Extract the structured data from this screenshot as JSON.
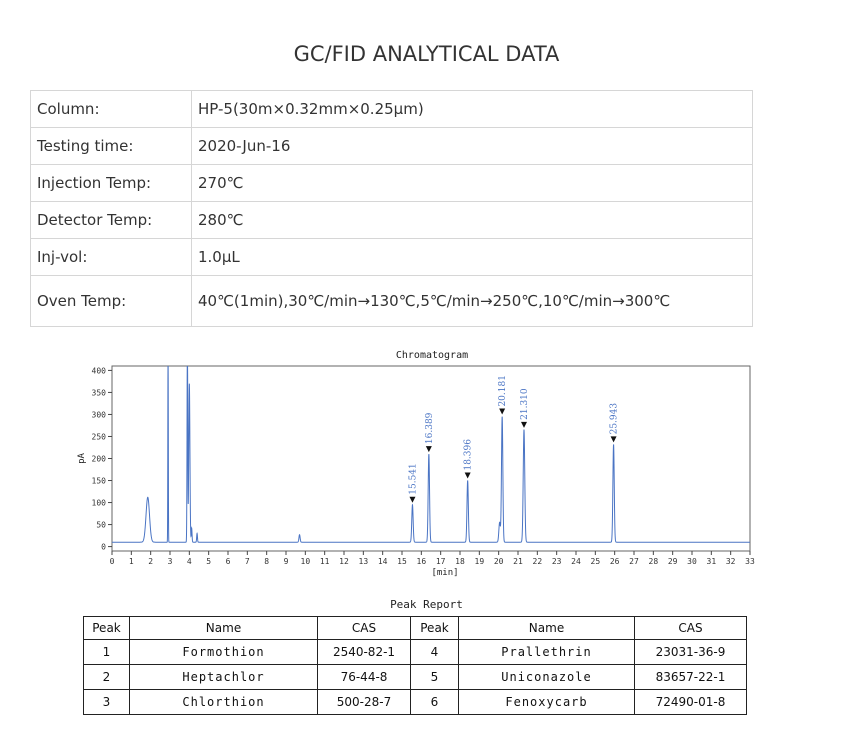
{
  "page": {
    "title": "GC/FID ANALYTICAL DATA"
  },
  "conditions": [
    {
      "key": "Column:",
      "value": "HP-5(30m×0.32mm×0.25μm)"
    },
    {
      "key": "Testing time:",
      "value": "2020-Jun-16"
    },
    {
      "key": "Injection Temp:",
      "value": "270℃"
    },
    {
      "key": "Detector Temp:",
      "value": "280℃"
    },
    {
      "key": "Inj-vol:",
      "value": "1.0μL"
    },
    {
      "key": "Oven Temp:",
      "value": "40℃(1min),30℃/min→130℃,5℃/min→250℃,10℃/min→300℃"
    }
  ],
  "chart_data": {
    "type": "line",
    "title": "Chromatogram",
    "xlabel": "[min]",
    "ylabel": "pA",
    "xlim": [
      0,
      33
    ],
    "ylim": [
      -10,
      410
    ],
    "xticks": [
      0,
      1,
      2,
      3,
      4,
      5,
      6,
      7,
      8,
      9,
      10,
      11,
      12,
      13,
      14,
      15,
      16,
      17,
      18,
      19,
      20,
      21,
      22,
      23,
      24,
      25,
      26,
      27,
      28,
      29,
      30,
      31,
      32,
      33
    ],
    "yticks": [
      0,
      50,
      100,
      150,
      200,
      250,
      300,
      350,
      400
    ],
    "baseline": 10,
    "line_color": "#4a74c4",
    "series": [
      {
        "peaks": [
          {
            "rt": 1.85,
            "height": 102,
            "width": 0.09
          },
          {
            "rt": 2.9,
            "height": 460,
            "width": 0.012
          },
          {
            "rt": 3.9,
            "height": 470,
            "width": 0.018
          },
          {
            "rt": 4.0,
            "height": 360,
            "width": 0.03
          },
          {
            "rt": 4.12,
            "height": 32,
            "width": 0.02
          },
          {
            "rt": 4.4,
            "height": 20,
            "width": 0.02
          },
          {
            "rt": 9.7,
            "height": 17,
            "width": 0.03
          },
          {
            "rt": 15.541,
            "height": 85,
            "width": 0.035
          },
          {
            "rt": 16.389,
            "height": 200,
            "width": 0.035
          },
          {
            "rt": 18.396,
            "height": 140,
            "width": 0.035
          },
          {
            "rt": 20.05,
            "height": 45,
            "width": 0.04
          },
          {
            "rt": 20.181,
            "height": 285,
            "width": 0.035
          },
          {
            "rt": 21.31,
            "height": 255,
            "width": 0.04
          },
          {
            "rt": 25.943,
            "height": 222,
            "width": 0.035
          }
        ]
      }
    ],
    "labeled_peaks": [
      {
        "rt": 15.541,
        "label": "15.541"
      },
      {
        "rt": 16.389,
        "label": "16.389"
      },
      {
        "rt": 18.396,
        "label": "18.396"
      },
      {
        "rt": 20.181,
        "label": "20.181"
      },
      {
        "rt": 21.31,
        "label": "21.310"
      },
      {
        "rt": 25.943,
        "label": "25.943"
      }
    ]
  },
  "peak_report": {
    "title": "Peak Report",
    "headers": [
      "Peak",
      "Name",
      "CAS",
      "Peak",
      "Name",
      "CAS"
    ],
    "rows": [
      [
        "1",
        "Formothion",
        "2540-82-1",
        "4",
        "Prallethrin",
        "23031-36-9"
      ],
      [
        "2",
        "Heptachlor",
        "76-44-8",
        "5",
        "Uniconazole",
        "83657-22-1"
      ],
      [
        "3",
        "Chlorthion",
        "500-28-7",
        "6",
        "Fenoxycarb",
        "72490-01-8"
      ]
    ]
  }
}
